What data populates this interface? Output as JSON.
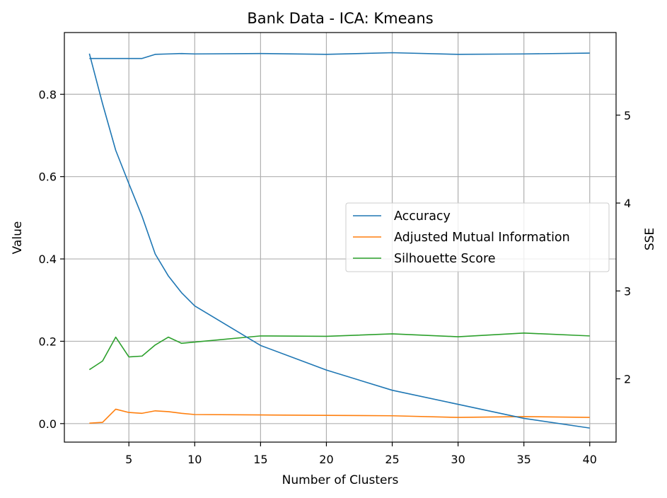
{
  "chart_data": {
    "type": "line",
    "title": "Bank Data - ICA: Kmeans",
    "xlabel": "Number of Clusters",
    "ylabel": "Value",
    "y2label": "SSE",
    "grid": true,
    "legend_position": "center-right",
    "xlim": [
      0.1,
      42.0
    ],
    "ylim": [
      -0.045,
      0.95
    ],
    "y2lim": [
      1.28,
      5.94
    ],
    "x_ticks": [
      5,
      10,
      15,
      20,
      25,
      30,
      35,
      40
    ],
    "x_tick_labels": [
      "5",
      "10",
      "15",
      "20",
      "25",
      "30",
      "35",
      "40"
    ],
    "y_ticks": [
      0.0,
      0.2,
      0.4,
      0.6,
      0.8
    ],
    "y_tick_labels": [
      "0.0",
      "0.2",
      "0.4",
      "0.6",
      "0.8"
    ],
    "y2_ticks": [
      2,
      3,
      4,
      5
    ],
    "y2_tick_labels": [
      "2",
      "3",
      "4",
      "5"
    ],
    "series": [
      {
        "name": "Accuracy",
        "color": "#1f77b4",
        "axis": "left",
        "in_legend": true,
        "x": [
          2,
          3,
          4,
          5,
          6,
          7,
          8,
          9,
          10,
          15,
          20,
          25,
          30,
          35,
          40
        ],
        "y": [
          0.887,
          0.887,
          0.887,
          0.887,
          0.887,
          0.897,
          0.898,
          0.899,
          0.898,
          0.899,
          0.897,
          0.901,
          0.897,
          0.898,
          0.9
        ]
      },
      {
        "name": "Adjusted Mutual Information",
        "color": "#ff7f0e",
        "axis": "left",
        "in_legend": true,
        "x": [
          2,
          3,
          4,
          5,
          6,
          7,
          8,
          9,
          10,
          15,
          20,
          25,
          30,
          35,
          40
        ],
        "y": [
          0.001,
          0.003,
          0.035,
          0.027,
          0.025,
          0.031,
          0.029,
          0.025,
          0.022,
          0.021,
          0.02,
          0.019,
          0.015,
          0.017,
          0.015
        ]
      },
      {
        "name": "Silhouette Score",
        "color": "#2ca02c",
        "axis": "left",
        "in_legend": true,
        "x": [
          2,
          3,
          4,
          5,
          6,
          7,
          8,
          9,
          10,
          15,
          20,
          25,
          30,
          35,
          40
        ],
        "y": [
          0.131,
          0.152,
          0.21,
          0.162,
          0.164,
          0.191,
          0.21,
          0.195,
          0.198,
          0.213,
          0.212,
          0.218,
          0.211,
          0.22,
          0.213
        ]
      },
      {
        "name": "SSE",
        "color": "#1f77b4",
        "axis": "right",
        "in_legend": false,
        "x": [
          2,
          3,
          4,
          5,
          6,
          7,
          8,
          9,
          10,
          15,
          20,
          25,
          30,
          35,
          40
        ],
        "y": [
          5.7,
          5.13,
          4.6,
          4.22,
          3.85,
          3.42,
          3.17,
          2.98,
          2.83,
          2.38,
          2.1,
          1.87,
          1.71,
          1.55,
          1.44
        ]
      }
    ]
  }
}
